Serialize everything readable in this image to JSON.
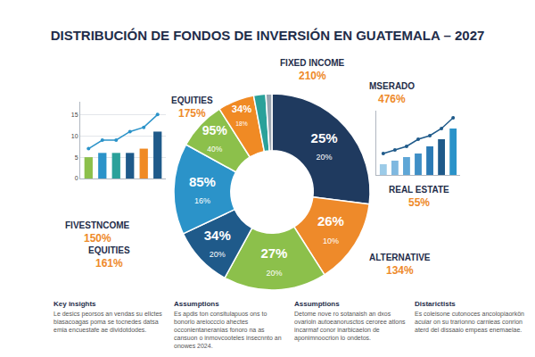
{
  "chart_data": [
    {
      "type": "pie",
      "title": "DISTRIBUCIÓN DE FONDOS DE INVERSIÓN EN GUATEMALA – 2027",
      "values": [
        27,
        14,
        17,
        10,
        15,
        8,
        6,
        2,
        1
      ],
      "colors": [
        "#1f3a5f",
        "#ee8a2a",
        "#8cc04b",
        "#1f5a8a",
        "#2b93c9",
        "#8cc04b",
        "#f08a24",
        "#2aa19a",
        "#9aa5b1"
      ],
      "slice_labels": [
        [
          "25%",
          "20%"
        ],
        [
          "26%",
          "10%"
        ],
        [
          "27%",
          "20%"
        ],
        [
          "34%",
          "20%"
        ],
        [
          "85%",
          "16%"
        ],
        [
          "95%",
          "40%"
        ],
        [
          "34%",
          "18%"
        ],
        null,
        null
      ],
      "callouts": [
        {
          "name": "MSERADO",
          "label": "476%"
        },
        {
          "name": "REAL ESTATE",
          "label": "55%"
        },
        {
          "name": "ALTERNATIVE",
          "label": "134%"
        },
        {
          "name": "EQUITIES",
          "label": "161%"
        },
        {
          "name": "FIVESTNCOME",
          "label": "150%"
        },
        {
          "name": "EQUITIES",
          "label": "175%"
        },
        {
          "name": "FIXED INCOME",
          "label": "210%"
        }
      ]
    },
    {
      "type": "bar",
      "categories": [
        null,
        null,
        null,
        null,
        null,
        null
      ],
      "series": [
        {
          "type": "bar",
          "colors": [
            "#8cc04b",
            "#2b93c9",
            "#2aa19a",
            "#1f5a8a",
            "#f08a24",
            "#1f5a8a"
          ],
          "values": [
            5,
            6,
            6,
            6,
            7,
            11
          ]
        },
        {
          "type": "line",
          "color": "#2b93c9",
          "marker": "circle",
          "values": [
            7,
            9,
            9,
            11,
            12,
            15
          ]
        }
      ],
      "ylim": [
        0,
        18
      ],
      "yticks": [
        0,
        5,
        10,
        15
      ],
      "grid": true
    },
    {
      "type": "bar",
      "categories": [
        null,
        null,
        null,
        null,
        null,
        null,
        null
      ],
      "series": [
        {
          "type": "bar",
          "colors": [
            "#9ccbe8",
            "#7fb8e0",
            "#5ea6d6",
            "#3f8fc6",
            "#2b7ab5",
            "#1f5a8a",
            "#2b93c9"
          ],
          "values": [
            3,
            4,
            5,
            6,
            8,
            10,
            13
          ]
        },
        {
          "type": "line",
          "color": "#1f5a8a",
          "marker": "circle",
          "values": [
            6,
            7,
            8,
            10,
            11,
            13,
            16
          ]
        }
      ],
      "ylim": [
        0,
        18
      ],
      "grid": true,
      "tick_labels": false
    }
  ],
  "notes": [
    {
      "heading": "Key insights",
      "text": "Le desics peorsos an vendas su ellctes biasacoagas poma se tocnedes datsa emia encuestafe ae dividotdodes."
    },
    {
      "heading": "Assumptions",
      "text": "Es apdis ton consitulapuos ons to bonorlo areiocccio ahectes occonientaneranias fonoro na as cansuon o inmovcooteles insecnnto an onowes 2024."
    },
    {
      "heading": "Assumptions",
      "text": "Detome nove ro sotanaish an dxos ovarioln autoeanorusctos ceroree atlons incarmaf conor inarbicaelon de aponimnoocrion lo ondetos."
    },
    {
      "heading": "Distarictists",
      "text": "Es coleisone cutonoces ancolopiaorkön acuiar on su trarionno carnieas conrion aterd del dissaaio empeas enemaelae."
    }
  ]
}
